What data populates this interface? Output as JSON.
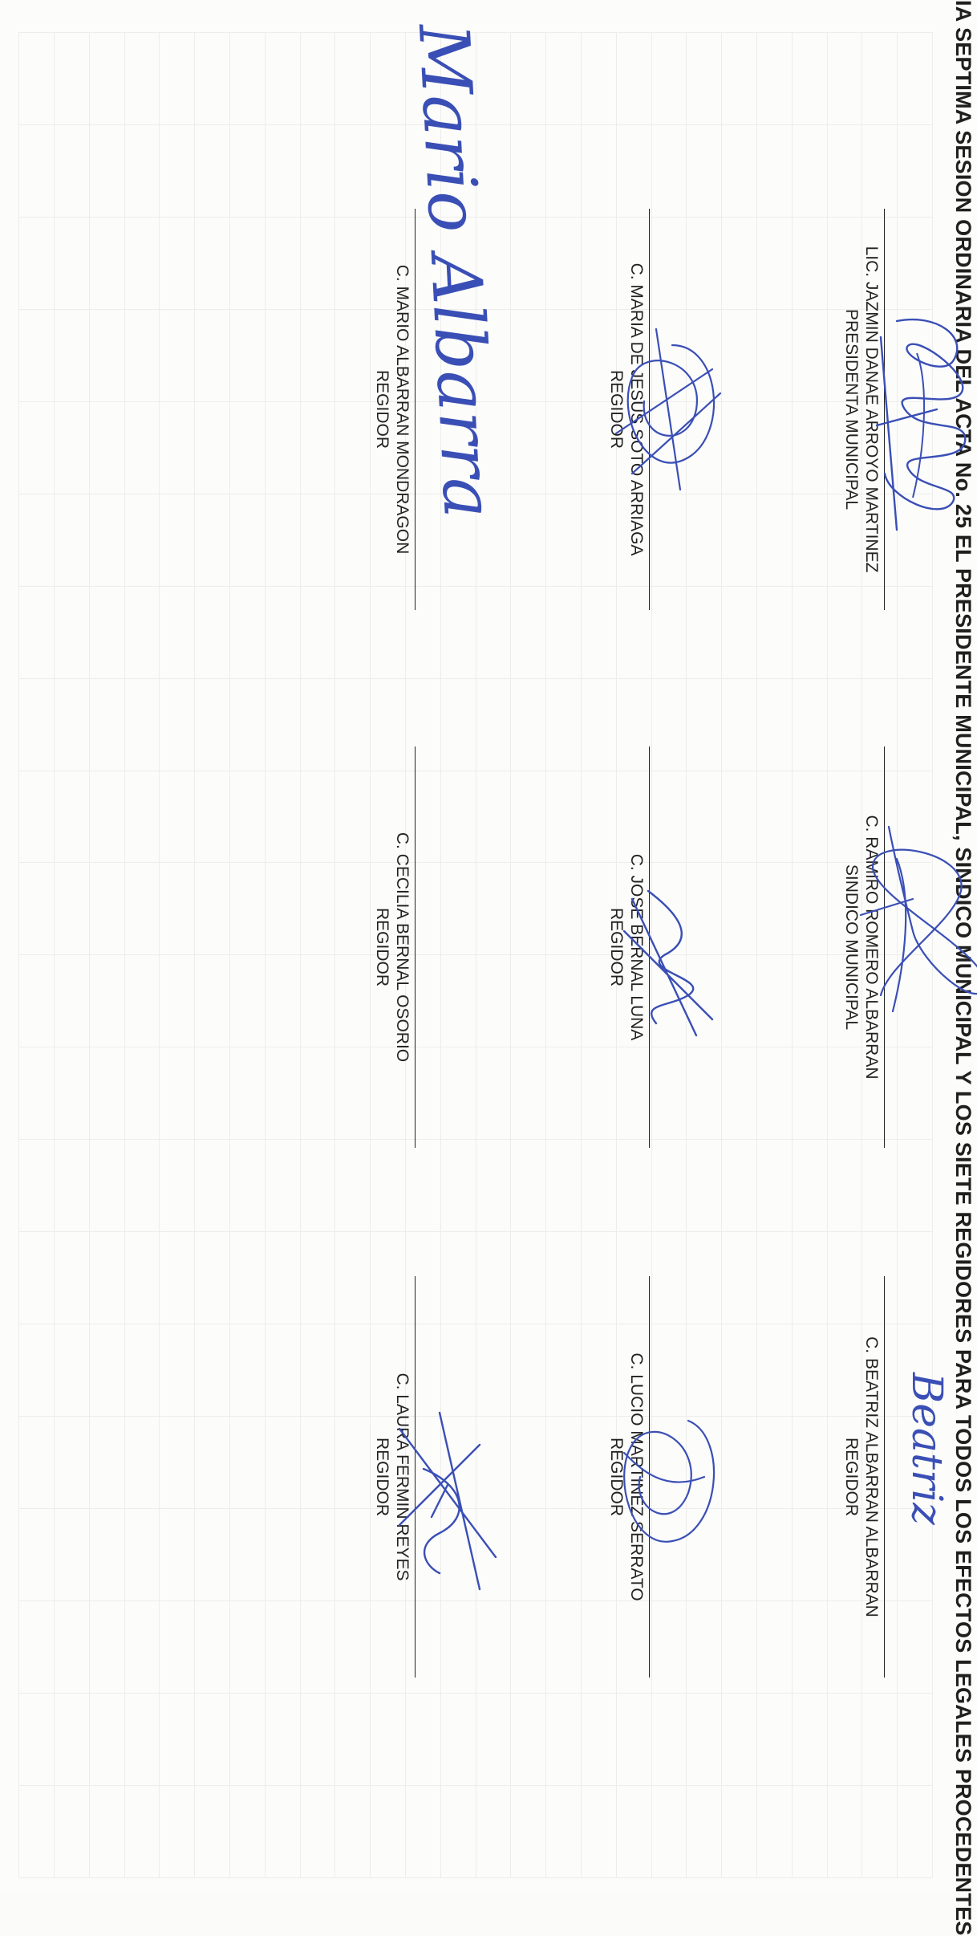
{
  "header": {
    "text": "IA SEPTIMA SESION ORDINARIA DEL ACTA No. 25 EL PRESIDENTE MUNICIPAL, SINDICO MUNICIPAL Y LOS SIETE REGIDORES PARA TODOS LOS EFECTOS LEGALES PROCEDENTES"
  },
  "signatories": [
    {
      "name": "LIC. JAZMIN DANAE ARROYO MARTINEZ",
      "role": "PRESIDENTA MUNICIPAL"
    },
    {
      "name": "C. RAMIRO ROMERO ALBARRAN",
      "role": "SINDICO MUNICIPAL"
    },
    {
      "name": "C. BEATRIZ ALBARRAN ALBARRAN",
      "role": "REGIDOR"
    },
    {
      "name": "C. MARIA DE JESUS SOTO ARRIAGA",
      "role": "REGIDOR"
    },
    {
      "name": "C. JOSE BERNAL LUNA",
      "role": "REGIDOR"
    },
    {
      "name": "C. LUCIO MARTINEZ SERRATO",
      "role": "REGIDOR"
    },
    {
      "name": "C. MARIO ALBARRAN MONDRAGON",
      "role": "REGIDOR"
    },
    {
      "name": "C. CECILIA BERNAL OSORIO",
      "role": "REGIDOR"
    },
    {
      "name": "C. LAURA FERMIN REYES",
      "role": "REGIDOR"
    }
  ],
  "handwriting": {
    "beatriz": "Beatriz",
    "mario": "Mario Albarran"
  },
  "colors": {
    "ink": "#3a4fb5",
    "text": "#222222",
    "faint_table": "#b9b9b9"
  }
}
